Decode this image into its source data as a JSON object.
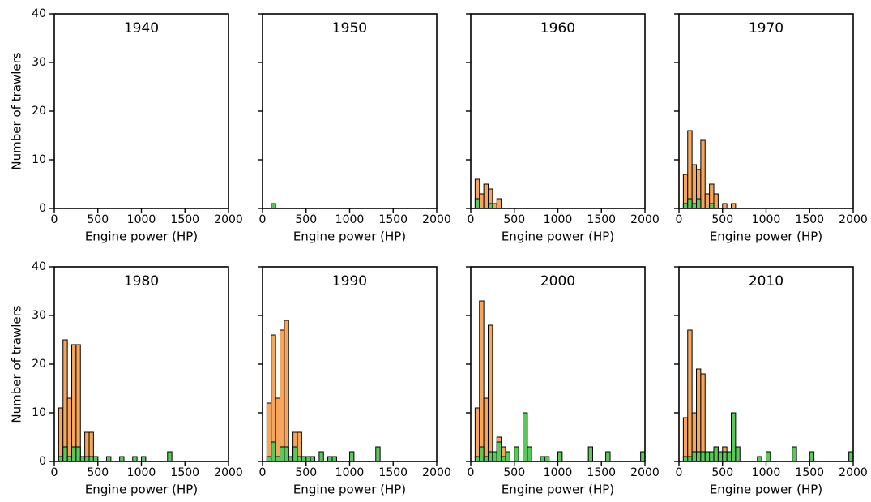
{
  "chart_data": [
    {
      "type": "histogram",
      "title": "1940",
      "xlabel": "Engine power (HP)",
      "ylabel": "Number of trawlers",
      "bins": [
        0,
        50,
        100,
        150,
        200,
        250,
        300,
        350,
        400,
        450,
        500,
        550,
        600,
        650,
        700,
        750,
        800,
        850,
        900,
        950,
        1000,
        1050,
        1100,
        1150,
        1200,
        1250,
        1300,
        1350,
        1400,
        1450,
        1500,
        1550,
        1600,
        1650,
        1700,
        1750,
        1800,
        1850,
        1900,
        1950,
        2000
      ],
      "series": [
        {
          "color": "#f5a55c",
          "values": [
            0,
            0,
            0,
            0,
            0,
            0,
            0,
            0,
            0,
            0,
            0,
            0,
            0,
            0,
            0,
            0,
            0,
            0,
            0,
            0,
            0,
            0,
            0,
            0,
            0,
            0,
            0,
            0,
            0,
            0,
            0,
            0,
            0,
            0,
            0,
            0,
            0,
            0,
            0,
            0
          ]
        },
        {
          "color": "#5cc85c",
          "values": [
            0,
            0,
            0,
            0,
            0,
            0,
            0,
            0,
            0,
            0,
            0,
            0,
            0,
            0,
            0,
            0,
            0,
            0,
            0,
            0,
            0,
            0,
            0,
            0,
            0,
            0,
            0,
            0,
            0,
            0,
            0,
            0,
            0,
            0,
            0,
            0,
            0,
            0,
            0,
            0
          ]
        }
      ],
      "xlim": [
        0,
        2000
      ],
      "ylim": [
        0,
        40
      ],
      "xticks": [
        0,
        500,
        1000,
        1500,
        2000
      ],
      "yticks": [
        0,
        10,
        20,
        30,
        40
      ]
    },
    {
      "type": "histogram",
      "title": "1950",
      "xlabel": "Engine power (HP)",
      "bins": [
        0,
        50,
        100,
        150,
        200,
        250,
        300,
        350,
        400,
        450,
        500,
        550,
        600,
        650,
        700,
        750,
        800,
        850,
        900,
        950,
        1000,
        1050,
        1100,
        1150,
        1200,
        1250,
        1300,
        1350,
        1400,
        1450,
        1500,
        1550,
        1600,
        1650,
        1700,
        1750,
        1800,
        1850,
        1900,
        1950,
        2000
      ],
      "series": [
        {
          "color": "#f5a55c",
          "values": [
            0,
            0,
            0,
            0,
            0,
            0,
            0,
            0,
            0,
            0,
            0,
            0,
            0,
            0,
            0,
            0,
            0,
            0,
            0,
            0,
            0,
            0,
            0,
            0,
            0,
            0,
            0,
            0,
            0,
            0,
            0,
            0,
            0,
            0,
            0,
            0,
            0,
            0,
            0,
            0
          ]
        },
        {
          "color": "#5cc85c",
          "values": [
            0,
            0,
            1,
            0,
            0,
            0,
            0,
            0,
            0,
            0,
            0,
            0,
            0,
            0,
            0,
            0,
            0,
            0,
            0,
            0,
            0,
            0,
            0,
            0,
            0,
            0,
            0,
            0,
            0,
            0,
            0,
            0,
            0,
            0,
            0,
            0,
            0,
            0,
            0,
            0
          ]
        }
      ],
      "xlim": [
        0,
        2000
      ],
      "ylim": [
        0,
        40
      ],
      "xticks": [
        0,
        500,
        1000,
        1500,
        2000
      ],
      "yticks": [
        0,
        10,
        20,
        30,
        40
      ]
    },
    {
      "type": "histogram",
      "title": "1960",
      "xlabel": "Engine power (HP)",
      "bins": [
        0,
        50,
        100,
        150,
        200,
        250,
        300,
        350,
        400,
        450,
        500,
        550,
        600,
        650,
        700,
        750,
        800,
        850,
        900,
        950,
        1000,
        1050,
        1100,
        1150,
        1200,
        1250,
        1300,
        1350,
        1400,
        1450,
        1500,
        1550,
        1600,
        1650,
        1700,
        1750,
        1800,
        1850,
        1900,
        1950,
        2000
      ],
      "series": [
        {
          "color": "#f5a55c",
          "values": [
            0,
            6,
            3,
            5,
            4,
            1,
            2,
            0,
            0,
            0,
            0,
            0,
            0,
            0,
            0,
            0,
            0,
            0,
            0,
            0,
            0,
            0,
            0,
            0,
            0,
            0,
            0,
            0,
            0,
            0,
            0,
            0,
            0,
            0,
            0,
            0,
            0,
            0,
            0,
            0
          ]
        },
        {
          "color": "#5cc85c",
          "values": [
            0,
            2,
            0,
            0,
            1,
            0,
            0,
            0,
            0,
            0,
            0,
            0,
            0,
            0,
            0,
            0,
            0,
            0,
            0,
            0,
            0,
            0,
            0,
            0,
            0,
            0,
            0,
            0,
            0,
            0,
            0,
            0,
            0,
            0,
            0,
            0,
            0,
            0,
            0,
            0
          ]
        }
      ],
      "xlim": [
        0,
        2000
      ],
      "ylim": [
        0,
        40
      ],
      "xticks": [
        0,
        500,
        1000,
        1500,
        2000
      ],
      "yticks": [
        0,
        10,
        20,
        30,
        40
      ]
    },
    {
      "type": "histogram",
      "title": "1970",
      "xlabel": "Engine power (HP)",
      "bins": [
        0,
        50,
        100,
        150,
        200,
        250,
        300,
        350,
        400,
        450,
        500,
        550,
        600,
        650,
        700,
        750,
        800,
        850,
        900,
        950,
        1000,
        1050,
        1100,
        1150,
        1200,
        1250,
        1300,
        1350,
        1400,
        1450,
        1500,
        1550,
        1600,
        1650,
        1700,
        1750,
        1800,
        1850,
        1900,
        1950,
        2000
      ],
      "series": [
        {
          "color": "#f5a55c",
          "values": [
            0,
            7,
            16,
            9,
            8,
            14,
            3,
            5,
            3,
            0,
            1,
            0,
            1,
            0,
            0,
            0,
            0,
            0,
            0,
            0,
            0,
            0,
            0,
            0,
            0,
            0,
            0,
            0,
            0,
            0,
            0,
            0,
            0,
            0,
            0,
            0,
            0,
            0,
            0,
            0
          ]
        },
        {
          "color": "#5cc85c",
          "values": [
            0,
            1,
            2,
            1,
            2,
            0,
            0,
            1,
            0,
            0,
            0,
            0,
            0,
            0,
            0,
            0,
            0,
            0,
            0,
            0,
            0,
            0,
            0,
            0,
            0,
            0,
            0,
            0,
            0,
            0,
            0,
            0,
            0,
            0,
            0,
            0,
            0,
            0,
            0,
            0
          ]
        }
      ],
      "xlim": [
        0,
        2000
      ],
      "ylim": [
        0,
        40
      ],
      "xticks": [
        0,
        500,
        1000,
        1500,
        2000
      ],
      "yticks": [
        0,
        10,
        20,
        30,
        40
      ]
    },
    {
      "type": "histogram",
      "title": "1980",
      "xlabel": "Engine power (HP)",
      "ylabel": "Number of trawlers",
      "bins": [
        0,
        50,
        100,
        150,
        200,
        250,
        300,
        350,
        400,
        450,
        500,
        550,
        600,
        650,
        700,
        750,
        800,
        850,
        900,
        950,
        1000,
        1050,
        1100,
        1150,
        1200,
        1250,
        1300,
        1350,
        1400,
        1450,
        1500,
        1550,
        1600,
        1650,
        1700,
        1750,
        1800,
        1850,
        1900,
        1950,
        2000
      ],
      "series": [
        {
          "color": "#f5a55c",
          "values": [
            0,
            11,
            25,
            13,
            24,
            24,
            1,
            6,
            6,
            1,
            0,
            0,
            0,
            0,
            0,
            0,
            0,
            0,
            0,
            0,
            0,
            0,
            0,
            0,
            0,
            0,
            0,
            0,
            0,
            0,
            0,
            0,
            0,
            0,
            0,
            0,
            0,
            0,
            0,
            0
          ]
        },
        {
          "color": "#5cc85c",
          "values": [
            0,
            1,
            3,
            1,
            3,
            3,
            1,
            1,
            1,
            1,
            0,
            0,
            1,
            0,
            0,
            1,
            0,
            0,
            1,
            0,
            1,
            0,
            0,
            0,
            0,
            0,
            2,
            0,
            0,
            0,
            0,
            0,
            0,
            0,
            0,
            0,
            0,
            0,
            0,
            0
          ]
        }
      ],
      "xlim": [
        0,
        2000
      ],
      "ylim": [
        0,
        40
      ],
      "xticks": [
        0,
        500,
        1000,
        1500,
        2000
      ],
      "yticks": [
        0,
        10,
        20,
        30,
        40
      ]
    },
    {
      "type": "histogram",
      "title": "1990",
      "xlabel": "Engine power (HP)",
      "bins": [
        0,
        50,
        100,
        150,
        200,
        250,
        300,
        350,
        400,
        450,
        500,
        550,
        600,
        650,
        700,
        750,
        800,
        850,
        900,
        950,
        1000,
        1050,
        1100,
        1150,
        1200,
        1250,
        1300,
        1350,
        1400,
        1450,
        1500,
        1550,
        1600,
        1650,
        1700,
        1750,
        1800,
        1850,
        1900,
        1950,
        2000
      ],
      "series": [
        {
          "color": "#f5a55c",
          "values": [
            0,
            12,
            26,
            13,
            27,
            29,
            1,
            6,
            6,
            1,
            1,
            1,
            0,
            0,
            0,
            1,
            1,
            0,
            0,
            0,
            0,
            0,
            0,
            0,
            0,
            0,
            0,
            0,
            0,
            0,
            0,
            0,
            0,
            0,
            0,
            0,
            0,
            0,
            0,
            0
          ]
        },
        {
          "color": "#5cc85c",
          "values": [
            0,
            1,
            4,
            1,
            3,
            3,
            1,
            3,
            1,
            1,
            1,
            1,
            0,
            2,
            0,
            1,
            1,
            0,
            0,
            0,
            2,
            0,
            0,
            0,
            0,
            0,
            3,
            0,
            0,
            0,
            0,
            0,
            0,
            0,
            0,
            0,
            0,
            0,
            0,
            0
          ]
        }
      ],
      "xlim": [
        0,
        2000
      ],
      "ylim": [
        0,
        40
      ],
      "xticks": [
        0,
        500,
        1000,
        1500,
        2000
      ],
      "yticks": [
        0,
        10,
        20,
        30,
        40
      ]
    },
    {
      "type": "histogram",
      "title": "2000",
      "xlabel": "Engine power (HP)",
      "bins": [
        0,
        50,
        100,
        150,
        200,
        250,
        300,
        350,
        400,
        450,
        500,
        550,
        600,
        650,
        700,
        750,
        800,
        850,
        900,
        950,
        1000,
        1050,
        1100,
        1150,
        1200,
        1250,
        1300,
        1350,
        1400,
        1450,
        1500,
        1550,
        1600,
        1650,
        1700,
        1750,
        1800,
        1850,
        1900,
        1950,
        2000
      ],
      "series": [
        {
          "color": "#f5a55c",
          "values": [
            0,
            11,
            33,
            13,
            28,
            2,
            5,
            3,
            2,
            0,
            0,
            0,
            0,
            0,
            0,
            0,
            1,
            0,
            0,
            0,
            0,
            0,
            0,
            0,
            0,
            0,
            0,
            0,
            0,
            0,
            0,
            0,
            0,
            0,
            0,
            0,
            0,
            0,
            0,
            0
          ]
        },
        {
          "color": "#5cc85c",
          "values": [
            0,
            1,
            3,
            1,
            2,
            2,
            4,
            1,
            2,
            0,
            3,
            0,
            10,
            3,
            0,
            0,
            1,
            1,
            0,
            0,
            2,
            0,
            0,
            0,
            0,
            0,
            0,
            3,
            0,
            0,
            0,
            2,
            0,
            0,
            0,
            0,
            0,
            0,
            0,
            2
          ]
        }
      ],
      "xlim": [
        0,
        2000
      ],
      "ylim": [
        0,
        40
      ],
      "xticks": [
        0,
        500,
        1000,
        1500,
        2000
      ],
      "yticks": [
        0,
        10,
        20,
        30,
        40
      ]
    },
    {
      "type": "histogram",
      "title": "2010",
      "xlabel": "Engine power (HP)",
      "bins": [
        0,
        50,
        100,
        150,
        200,
        250,
        300,
        350,
        400,
        450,
        500,
        550,
        600,
        650,
        700,
        750,
        800,
        850,
        900,
        950,
        1000,
        1050,
        1100,
        1150,
        1200,
        1250,
        1300,
        1350,
        1400,
        1450,
        1500,
        1550,
        1600,
        1650,
        1700,
        1750,
        1800,
        1850,
        1900,
        1950,
        2000
      ],
      "series": [
        {
          "color": "#f5a55c",
          "values": [
            0,
            9,
            27,
            10,
            19,
            18,
            2,
            2,
            3,
            2,
            3,
            0,
            0,
            0,
            0,
            0,
            0,
            0,
            0,
            0,
            0,
            0,
            0,
            0,
            0,
            0,
            0,
            0,
            0,
            0,
            0,
            0,
            0,
            0,
            0,
            0,
            0,
            0,
            0,
            0
          ]
        },
        {
          "color": "#5cc85c",
          "values": [
            0,
            1,
            1,
            2,
            2,
            2,
            2,
            2,
            3,
            2,
            2,
            2,
            10,
            3,
            0,
            0,
            0,
            0,
            1,
            0,
            2,
            0,
            0,
            0,
            0,
            0,
            3,
            0,
            0,
            0,
            2,
            0,
            0,
            0,
            0,
            0,
            0,
            0,
            0,
            2
          ]
        }
      ],
      "xlim": [
        0,
        2000
      ],
      "ylim": [
        0,
        40
      ],
      "xticks": [
        0,
        500,
        1000,
        1500,
        2000
      ],
      "yticks": [
        0,
        10,
        20,
        30,
        40
      ]
    }
  ]
}
